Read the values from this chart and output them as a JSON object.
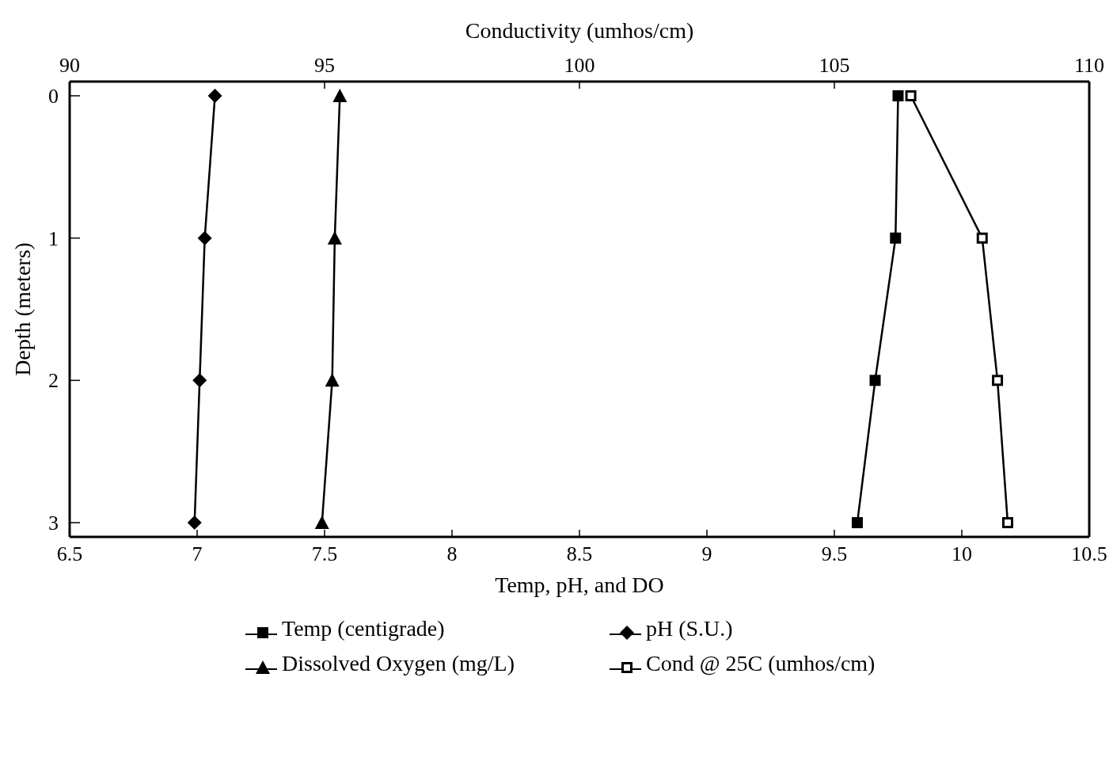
{
  "chart_data": {
    "type": "line",
    "xlabel": "Temp, pH, and DO",
    "x2label": "Conductivity (umhos/cm)",
    "ylabel": "Depth (meters)",
    "xlim": [
      6.5,
      10.5
    ],
    "xticks": [
      6.5,
      7,
      7.5,
      8,
      8.5,
      9,
      9.5,
      10,
      10.5
    ],
    "x2lim": [
      90,
      110
    ],
    "x2ticks": [
      90,
      95,
      100,
      105,
      110
    ],
    "ylim": [
      3.1,
      -0.1
    ],
    "yticks": [
      0,
      1,
      2,
      3
    ],
    "grid": false,
    "legend": "bottom",
    "line_style": "solid",
    "series": [
      {
        "name": "Temp (centigrade)",
        "color": "#000000",
        "marker": "square",
        "x": [
          9.75,
          9.74,
          9.66,
          9.59
        ],
        "values": [
          0,
          1,
          2,
          3
        ]
      },
      {
        "name": "pH (S.U.)",
        "color": "#000000",
        "marker": "diamond",
        "x": [
          7.07,
          7.03,
          7.01,
          6.99
        ],
        "values": [
          0,
          1,
          2,
          3
        ]
      },
      {
        "name": "Dissolved Oxygen (mg/L)",
        "color": "#000000",
        "marker": "triangle",
        "x": [
          7.56,
          7.54,
          7.53,
          7.49
        ],
        "values": [
          0,
          1,
          2,
          3
        ]
      },
      {
        "name": "Cond @ 25C (umhos/cm)",
        "color": "#000000",
        "marker": "square",
        "axis": "x2",
        "x": [
          106.5,
          107.9,
          108.2,
          108.4
        ],
        "values": [
          0,
          1,
          2,
          3
        ]
      }
    ]
  }
}
